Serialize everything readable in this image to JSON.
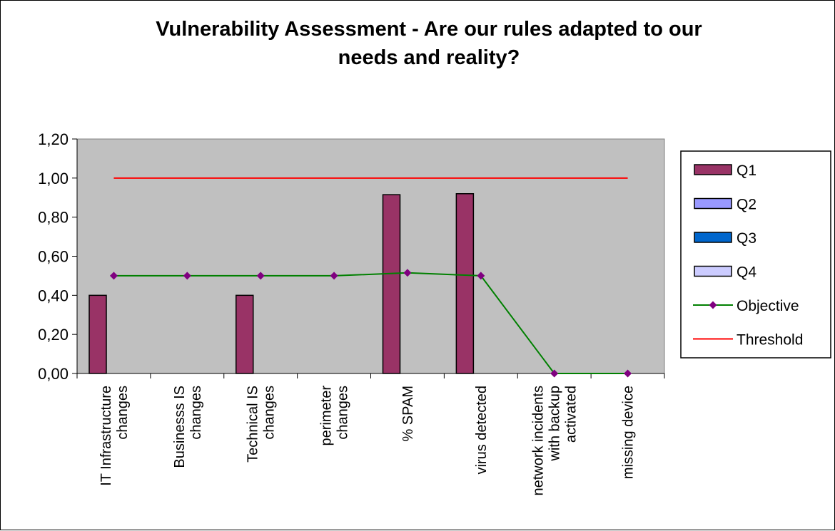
{
  "chart_data": {
    "type": "bar",
    "title_lines": [
      "Vulnerability Assessment  - Are our rules adapted to our",
      "needs and reality?"
    ],
    "categories": [
      [
        "IT Infrastructure",
        "changes"
      ],
      [
        "Businesss IS",
        "changes"
      ],
      [
        "Technical IS",
        "changes"
      ],
      [
        "perimeter",
        "changes"
      ],
      [
        "% SPAM"
      ],
      [
        "virus detected"
      ],
      [
        "network incidents",
        "with backup",
        "activated"
      ],
      [
        "missing device"
      ]
    ],
    "ylim": [
      0,
      1.2
    ],
    "yticks": [
      "0,00",
      "0,20",
      "0,40",
      "0,60",
      "0,80",
      "1,00",
      "1,20"
    ],
    "grid": false,
    "plot_background": "#c0c0c0",
    "legend_position": "right",
    "series": [
      {
        "name": "Q1",
        "kind": "bar",
        "color": "#993366",
        "values": [
          0.4,
          0,
          0.4,
          0,
          0.915,
          0.92,
          0,
          0
        ]
      },
      {
        "name": "Q2",
        "kind": "bar",
        "color": "#9999ff",
        "values": [
          0,
          0,
          0,
          0,
          0,
          0,
          0,
          0
        ]
      },
      {
        "name": "Q3",
        "kind": "bar",
        "color": "#0066cc",
        "values": [
          0,
          0,
          0,
          0,
          0,
          0,
          0,
          0
        ]
      },
      {
        "name": "Q4",
        "kind": "bar",
        "color": "#ccccff",
        "values": [
          0,
          0,
          0,
          0,
          0,
          0,
          0,
          0
        ]
      },
      {
        "name": "Objective",
        "kind": "line",
        "color": "#008000",
        "marker_color": "#800080",
        "values": [
          0.5,
          0.5,
          0.5,
          0.5,
          0.515,
          0.5,
          0,
          0
        ]
      },
      {
        "name": "Threshold",
        "kind": "line",
        "color": "#ff0000",
        "values": [
          1,
          1,
          1,
          1,
          1,
          1,
          1,
          1
        ]
      }
    ]
  }
}
